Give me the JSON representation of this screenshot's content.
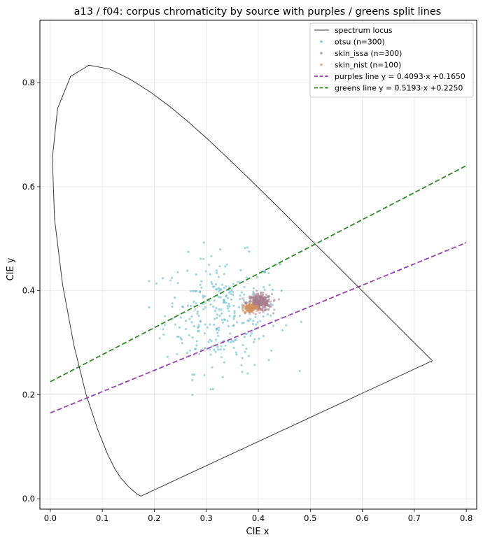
{
  "chart_data": {
    "type": "scatter",
    "title": "a13 / f04: corpus chromaticity by source with purples / greens split lines",
    "xlabel": "CIE x",
    "ylabel": "CIE y",
    "xlim": [
      -0.02,
      0.82
    ],
    "ylim": [
      -0.02,
      0.92
    ],
    "xticks": [
      "0.0",
      "0.1",
      "0.2",
      "0.3",
      "0.4",
      "0.5",
      "0.6",
      "0.7",
      "0.8"
    ],
    "yticks": [
      "0.0",
      "0.2",
      "0.4",
      "0.6",
      "0.8"
    ],
    "grid": true,
    "legend_position": "top-right",
    "locus": {
      "name": "spectrum locus",
      "color": "#3a3a3a",
      "points": [
        [
          0.1741,
          0.005
        ],
        [
          0.1666,
          0.0089
        ],
        [
          0.151,
          0.0227
        ],
        [
          0.1355,
          0.0399
        ],
        [
          0.1241,
          0.0578
        ],
        [
          0.1096,
          0.0868
        ],
        [
          0.0913,
          0.1327
        ],
        [
          0.0687,
          0.2007
        ],
        [
          0.0454,
          0.295
        ],
        [
          0.0235,
          0.4127
        ],
        [
          0.0082,
          0.5384
        ],
        [
          0.0039,
          0.6548
        ],
        [
          0.0139,
          0.7502
        ],
        [
          0.0389,
          0.812
        ],
        [
          0.0743,
          0.8338
        ],
        [
          0.1142,
          0.8262
        ],
        [
          0.1547,
          0.8059
        ],
        [
          0.1929,
          0.7816
        ],
        [
          0.2296,
          0.7543
        ],
        [
          0.2658,
          0.7243
        ],
        [
          0.3016,
          0.6923
        ],
        [
          0.3373,
          0.6589
        ],
        [
          0.3731,
          0.6245
        ],
        [
          0.4087,
          0.5896
        ],
        [
          0.4441,
          0.5547
        ],
        [
          0.4788,
          0.5202
        ],
        [
          0.5125,
          0.4866
        ],
        [
          0.5448,
          0.4544
        ],
        [
          0.5752,
          0.4242
        ],
        [
          0.6029,
          0.3965
        ],
        [
          0.627,
          0.3725
        ],
        [
          0.6482,
          0.3514
        ],
        [
          0.6658,
          0.334
        ],
        [
          0.6801,
          0.3197
        ],
        [
          0.6915,
          0.3083
        ],
        [
          0.7006,
          0.2993
        ],
        [
          0.7079,
          0.292
        ],
        [
          0.714,
          0.2859
        ],
        [
          0.719,
          0.2809
        ],
        [
          0.723,
          0.277
        ],
        [
          0.726,
          0.274
        ],
        [
          0.7283,
          0.2717
        ],
        [
          0.73,
          0.27
        ],
        [
          0.7311,
          0.2689
        ],
        [
          0.732,
          0.268
        ],
        [
          0.7347,
          0.2653
        ],
        [
          0.1741,
          0.005
        ]
      ]
    },
    "series": [
      {
        "name": "otsu (n=300)",
        "color": "#5ab4c8",
        "n": 300,
        "center": [
          0.33,
          0.355
        ],
        "spread": [
          0.055,
          0.055
        ],
        "x_range": [
          0.19,
          0.54
        ],
        "y_range": [
          0.2,
          0.5
        ]
      },
      {
        "name": "skin_issa (n=300)",
        "color": "#a67c8c",
        "n": 300,
        "center": [
          0.402,
          0.377
        ],
        "spread": [
          0.012,
          0.008
        ],
        "x_range": [
          0.37,
          0.44
        ],
        "y_range": [
          0.355,
          0.4
        ]
      },
      {
        "name": "skin_nist (n=100)",
        "color": "#d4905a",
        "n": 100,
        "center": [
          0.385,
          0.366
        ],
        "spread": [
          0.008,
          0.005
        ],
        "x_range": [
          0.37,
          0.41
        ],
        "y_range": [
          0.355,
          0.38
        ]
      }
    ],
    "lines": [
      {
        "name": "purples line  y = 0.4093·x +0.1650",
        "slope": 0.4093,
        "intercept": 0.165,
        "x_range": [
          0.0,
          0.8
        ],
        "color": "#9b3fb3"
      },
      {
        "name": "greens line  y = 0.5193·x +0.2250",
        "slope": 0.5193,
        "intercept": 0.225,
        "x_range": [
          0.0,
          0.8
        ],
        "color": "#2e8a28"
      }
    ]
  }
}
